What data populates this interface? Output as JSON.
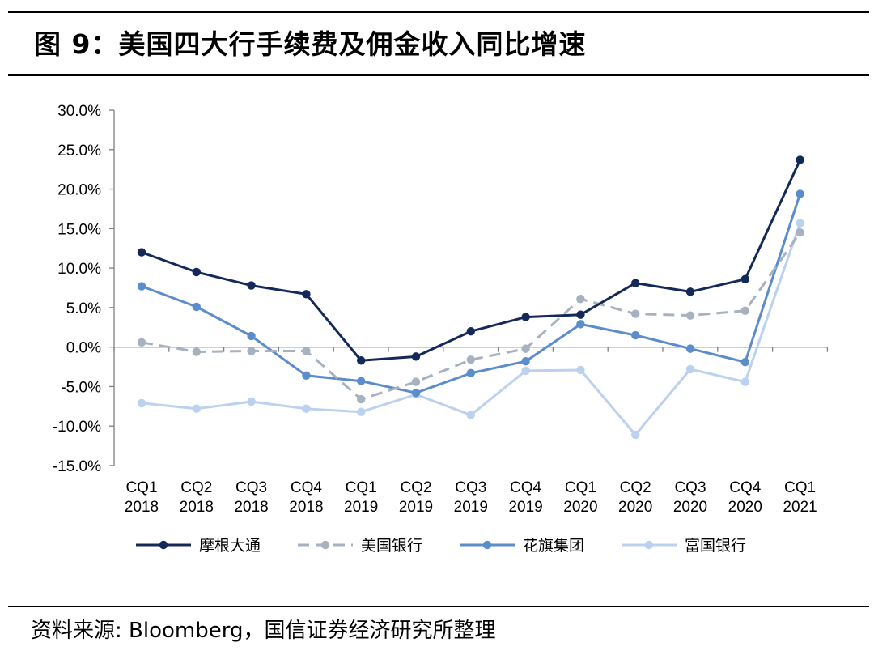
{
  "figure": {
    "title": "图 9：美国四大行手续费及佣金收入同比增速",
    "source": "资料来源: Bloomberg，国信证券经济研究所整理"
  },
  "colors": {
    "摩根大通": "#14285a",
    "美国银行": "#a7b1bf",
    "花旗集团": "#5b8ccc",
    "富国银行": "#bcd1ee"
  },
  "chart_data": {
    "type": "line",
    "title": "",
    "xlabel": "",
    "ylabel": "",
    "categories": [
      [
        "CQ1",
        "2018"
      ],
      [
        "CQ2",
        "2018"
      ],
      [
        "CQ3",
        "2018"
      ],
      [
        "CQ4",
        "2018"
      ],
      [
        "CQ1",
        "2019"
      ],
      [
        "CQ2",
        "2019"
      ],
      [
        "CQ3",
        "2019"
      ],
      [
        "CQ4",
        "2019"
      ],
      [
        "CQ1",
        "2020"
      ],
      [
        "CQ2",
        "2020"
      ],
      [
        "CQ3",
        "2020"
      ],
      [
        "CQ4",
        "2020"
      ],
      [
        "CQ1",
        "2021"
      ]
    ],
    "ylim": [
      -15,
      30
    ],
    "yticks": [
      30,
      25,
      20,
      15,
      10,
      5,
      0,
      -5,
      -10,
      -15
    ],
    "ytick_labels": [
      "30.0%",
      "25.0%",
      "20.0%",
      "15.0%",
      "10.0%",
      "5.0%",
      "0.0%",
      "-5.0%",
      "-10.0%",
      "-15.0%"
    ],
    "grid": false,
    "legend_position": "bottom",
    "series": [
      {
        "name": "摩根大通",
        "style": "solid",
        "values": [
          12.0,
          9.5,
          7.8,
          6.7,
          -1.7,
          -1.2,
          2.0,
          3.8,
          4.1,
          8.1,
          7.0,
          8.6,
          23.7
        ]
      },
      {
        "name": "美国银行",
        "style": "dashed",
        "values": [
          0.6,
          -0.6,
          -0.5,
          -0.5,
          -6.6,
          -4.4,
          -1.6,
          -0.2,
          6.1,
          4.2,
          4.0,
          4.6,
          14.5
        ]
      },
      {
        "name": "花旗集团",
        "style": "solid",
        "values": [
          7.7,
          5.1,
          1.4,
          -3.6,
          -4.3,
          -5.8,
          -3.3,
          -1.8,
          2.9,
          1.5,
          -0.2,
          -1.9,
          19.4
        ]
      },
      {
        "name": "富国银行",
        "style": "solid",
        "values": [
          -7.1,
          -7.8,
          -6.9,
          -7.8,
          -8.2,
          -6.0,
          -8.6,
          -3.0,
          -2.9,
          -11.1,
          -2.8,
          -4.4,
          15.7
        ]
      }
    ]
  }
}
